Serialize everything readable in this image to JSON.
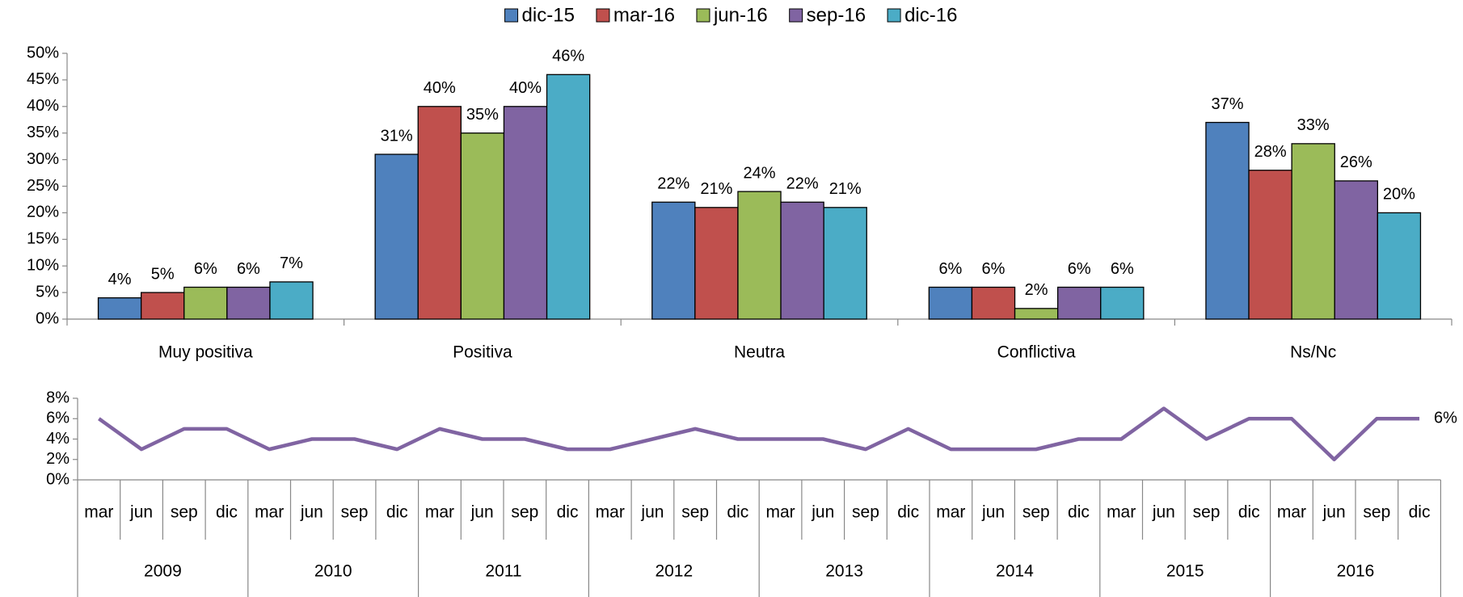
{
  "chart_data": [
    {
      "type": "bar",
      "categories": [
        "Muy positiva",
        "Positiva",
        "Neutra",
        "Conflictiva",
        "Ns/Nc"
      ],
      "series": [
        {
          "name": "dic-15",
          "color": "#4f81bd",
          "values": [
            4,
            31,
            22,
            6,
            37
          ],
          "value_labels": [
            "4%",
            "31%",
            "22%",
            "6%",
            "37%"
          ]
        },
        {
          "name": "mar-16",
          "color": "#c0504d",
          "values": [
            5,
            40,
            21,
            6,
            28
          ],
          "value_labels": [
            "5%",
            "40%",
            "21%",
            "6%",
            "28%"
          ]
        },
        {
          "name": "jun-16",
          "color": "#9bbb59",
          "values": [
            6,
            35,
            24,
            2,
            33
          ],
          "value_labels": [
            "6%",
            "35%",
            "24%",
            "2%",
            "33%"
          ]
        },
        {
          "name": "sep-16",
          "color": "#8064a2",
          "values": [
            6,
            40,
            22,
            6,
            26
          ],
          "value_labels": [
            "6%",
            "40%",
            "22%",
            "6%",
            "26%"
          ]
        },
        {
          "name": "dic-16",
          "color": "#4bacc6",
          "values": [
            7,
            46,
            21,
            6,
            20
          ],
          "value_labels": [
            "7%",
            "46%",
            "21%",
            "6%",
            "20%"
          ]
        }
      ],
      "ylim": [
        0,
        50
      ],
      "yticks": [
        {
          "value": 0,
          "label": "0%"
        },
        {
          "value": 5,
          "label": "5%"
        },
        {
          "value": 10,
          "label": "10%"
        },
        {
          "value": 15,
          "label": "15%"
        },
        {
          "value": 20,
          "label": "20%"
        },
        {
          "value": 25,
          "label": "25%"
        },
        {
          "value": 30,
          "label": "30%"
        },
        {
          "value": 35,
          "label": "35%"
        },
        {
          "value": 40,
          "label": "40%"
        },
        {
          "value": 45,
          "label": "45%"
        },
        {
          "value": 50,
          "label": "50%"
        }
      ],
      "legend": "top"
    },
    {
      "type": "line",
      "categories": [
        "mar",
        "jun",
        "sep",
        "dic",
        "mar",
        "jun",
        "sep",
        "dic",
        "mar",
        "jun",
        "sep",
        "dic",
        "mar",
        "jun",
        "sep",
        "dic",
        "mar",
        "jun",
        "sep",
        "dic",
        "mar",
        "jun",
        "sep",
        "dic",
        "mar",
        "jun",
        "sep",
        "dic",
        "mar",
        "jun",
        "sep",
        "dic"
      ],
      "years": [
        "2009",
        "2010",
        "2011",
        "2012",
        "2013",
        "2014",
        "2015",
        "2016"
      ],
      "series": [
        {
          "color": "#8064a2",
          "values": [
            6,
            3,
            5,
            5,
            3,
            4,
            4,
            3,
            5,
            4,
            4,
            3,
            3,
            4,
            5,
            4,
            4,
            4,
            3,
            5,
            3,
            3,
            3,
            4,
            4,
            7,
            4,
            6,
            6,
            2,
            6,
            6
          ],
          "end_label": "6%"
        }
      ],
      "ylim": [
        0,
        8
      ],
      "yticks": [
        {
          "value": 0,
          "label": "0%"
        },
        {
          "value": 2,
          "label": "2%"
        },
        {
          "value": 4,
          "label": "4%"
        },
        {
          "value": 6,
          "label": "6%"
        },
        {
          "value": 8,
          "label": "8%"
        }
      ]
    }
  ]
}
